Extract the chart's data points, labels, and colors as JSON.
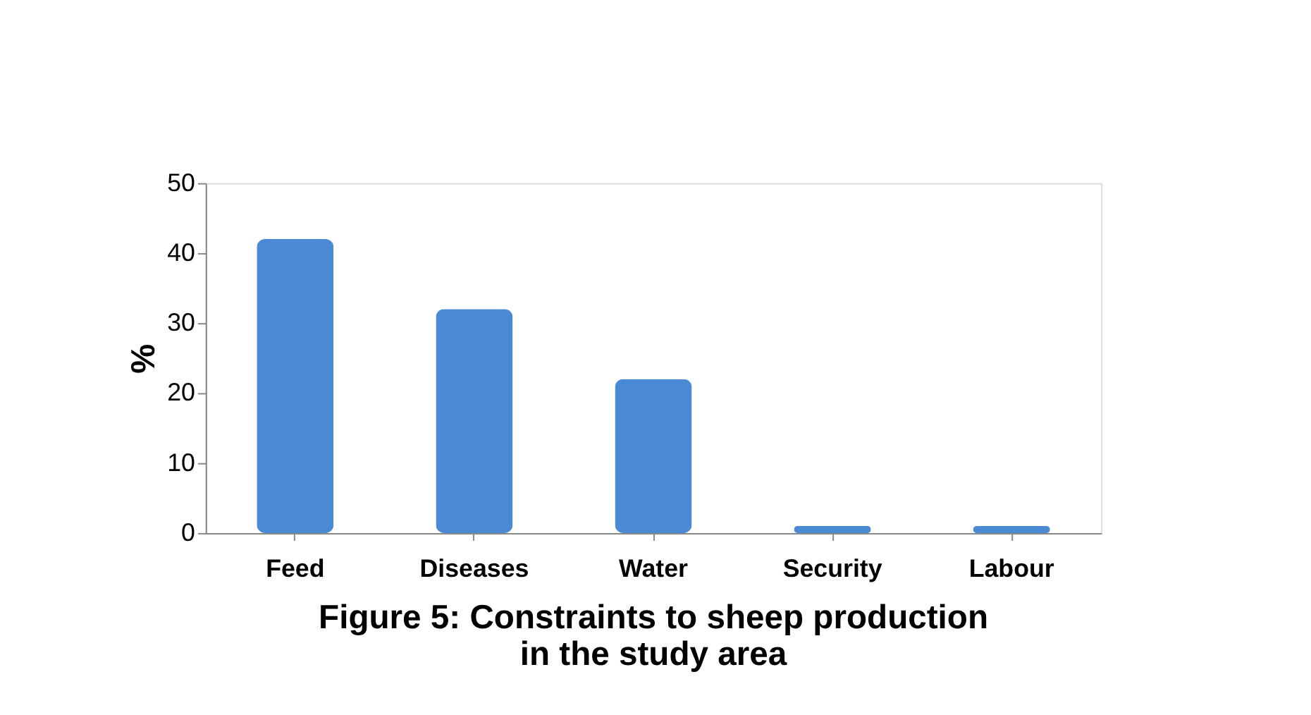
{
  "chart_data": {
    "type": "bar",
    "title": "Figure 5: Constraints to sheep production in the study area",
    "ylabel": "%",
    "categories": [
      "Feed",
      "Diseases",
      "Water",
      "Security",
      "Labour"
    ],
    "values": [
      42,
      32,
      22,
      1,
      1
    ],
    "color": "#4a8ad4",
    "ylim": [
      0,
      50
    ],
    "yticks": [
      0,
      10,
      20,
      30,
      40,
      50
    ],
    "grid": false
  }
}
